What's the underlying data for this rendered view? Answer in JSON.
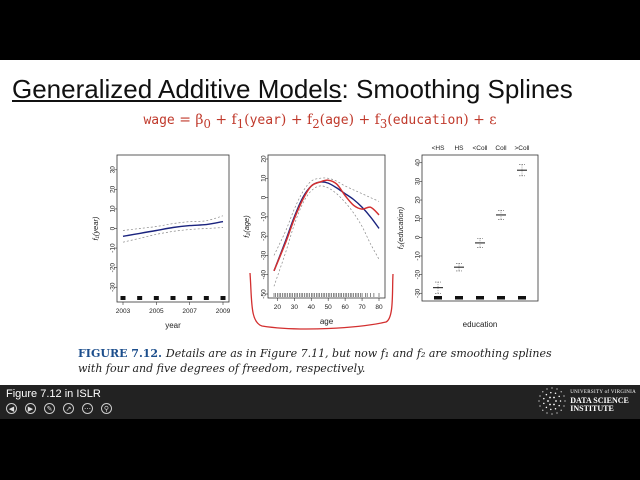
{
  "slide": {
    "title_main": "Generalized Additive Models",
    "title_sep": ": ",
    "title_sub": "Smoothing Splines"
  },
  "formula": {
    "wage": "wage",
    "eq": " = β",
    "beta_sub": "0",
    "plus_f1": " + f",
    "f1_sub": "1",
    "year": "year",
    "plus_f2": " + f",
    "f2_sub": "2",
    "age": "age",
    "plus_f3": " + f",
    "f3_sub": "3",
    "education": "education",
    "plus_eps": " + ε"
  },
  "caption": {
    "label": "FIGURE 7.12.",
    "text": "Details are as in Figure 7.11, but now f₁ and f₂ are smoothing splines with four and five degrees of freedom, respectively."
  },
  "bottom_bar": {
    "title": "Figure 7.12 in ISLR",
    "logo_line1": "UNIVERSITY of VIRGINIA",
    "logo_line2": "DATA SCIENCE",
    "logo_line3": "INSTITUTE"
  },
  "colors": {
    "fit": "#1a237e",
    "band": "#888888",
    "overlay": "#d32f2f",
    "annotation": "#d32f2f",
    "caption_label": "#1c4e8c"
  },
  "icons": [
    "prev-icon",
    "next-icon",
    "pen-icon",
    "pointer-icon",
    "more-icon",
    "zoom-icon"
  ],
  "chart_data": [
    {
      "type": "line",
      "xlabel": "year",
      "ylabel": "f₁(year)",
      "xlim": [
        2003,
        2009
      ],
      "ylim": [
        -35,
        35
      ],
      "xticks": [
        2003,
        2005,
        2007,
        2009
      ],
      "yticks": [
        -30,
        -20,
        -10,
        0,
        10,
        20,
        30
      ],
      "x": [
        2003,
        2004,
        2005,
        2006,
        2007,
        2008,
        2009
      ],
      "series": [
        {
          "values": [
            -4.0,
            -2.5,
            -1.0,
            0.5,
            1.5,
            2.0,
            3.5
          ]
        },
        {
          "values": [
            -1.0,
            0.0,
            1.0,
            2.5,
            3.5,
            4.0,
            6.5
          ]
        },
        {
          "values": [
            -7.0,
            -5.0,
            -3.0,
            -1.5,
            -0.5,
            0.0,
            0.5
          ]
        }
      ],
      "rug_x": [
        2003,
        2004,
        2005,
        2006,
        2007,
        2008,
        2009
      ]
    },
    {
      "type": "line",
      "xlabel": "age",
      "ylabel": "f₂(age)",
      "xlim": [
        18,
        80
      ],
      "ylim": [
        -50,
        20
      ],
      "xticks": [
        20,
        30,
        40,
        50,
        60,
        70,
        80
      ],
      "yticks": [
        -50,
        -40,
        -30,
        -20,
        -10,
        0,
        10,
        20
      ],
      "x": [
        18,
        25,
        30,
        35,
        40,
        45,
        50,
        55,
        60,
        65,
        70,
        75,
        80
      ],
      "series": [
        {
          "values": [
            -38,
            -22,
            -10,
            0,
            6,
            8,
            7.5,
            5,
            2,
            -1,
            -5,
            -10,
            -16
          ]
        },
        {
          "values": [
            -30,
            -17,
            -6,
            3,
            8.5,
            10,
            10,
            8.5,
            6,
            4,
            2,
            0,
            -2
          ]
        },
        {
          "values": [
            -46,
            -28,
            -14,
            -3,
            3.5,
            6,
            5,
            2,
            -2.5,
            -8,
            -15,
            -24,
            -32
          ]
        },
        {
          "values": [
            -38,
            -23,
            -11,
            -1,
            6,
            8,
            9,
            7,
            1,
            -4,
            -6,
            -5,
            -9
          ]
        }
      ],
      "rug_x": [
        18,
        19,
        20,
        21,
        22,
        23,
        24,
        25,
        26,
        27,
        28,
        29,
        30,
        31,
        32,
        33,
        34,
        35,
        36,
        37,
        38,
        39,
        40,
        41,
        42,
        43,
        44,
        45,
        46,
        47,
        48,
        49,
        50,
        51,
        52,
        53,
        54,
        55,
        56,
        57,
        58,
        59,
        60,
        61,
        62,
        63,
        64,
        65,
        66,
        67,
        68,
        69,
        70,
        72,
        73,
        75,
        77,
        80
      ]
    },
    {
      "type": "scatter",
      "xlabel": "education",
      "ylabel": "f₃(education)",
      "categories": [
        "<HS",
        "HS",
        "<Coll",
        "Coll",
        ">Coll"
      ],
      "ylim": [
        -32,
        42
      ],
      "yticks": [
        -30,
        -20,
        -10,
        0,
        10,
        20,
        30,
        40
      ],
      "values": [
        -27,
        -16,
        -3,
        12,
        36
      ],
      "upper": [
        -24,
        -14,
        -0.5,
        14.5,
        39
      ],
      "lower": [
        -30,
        -18,
        -5.5,
        9.5,
        33
      ]
    }
  ]
}
